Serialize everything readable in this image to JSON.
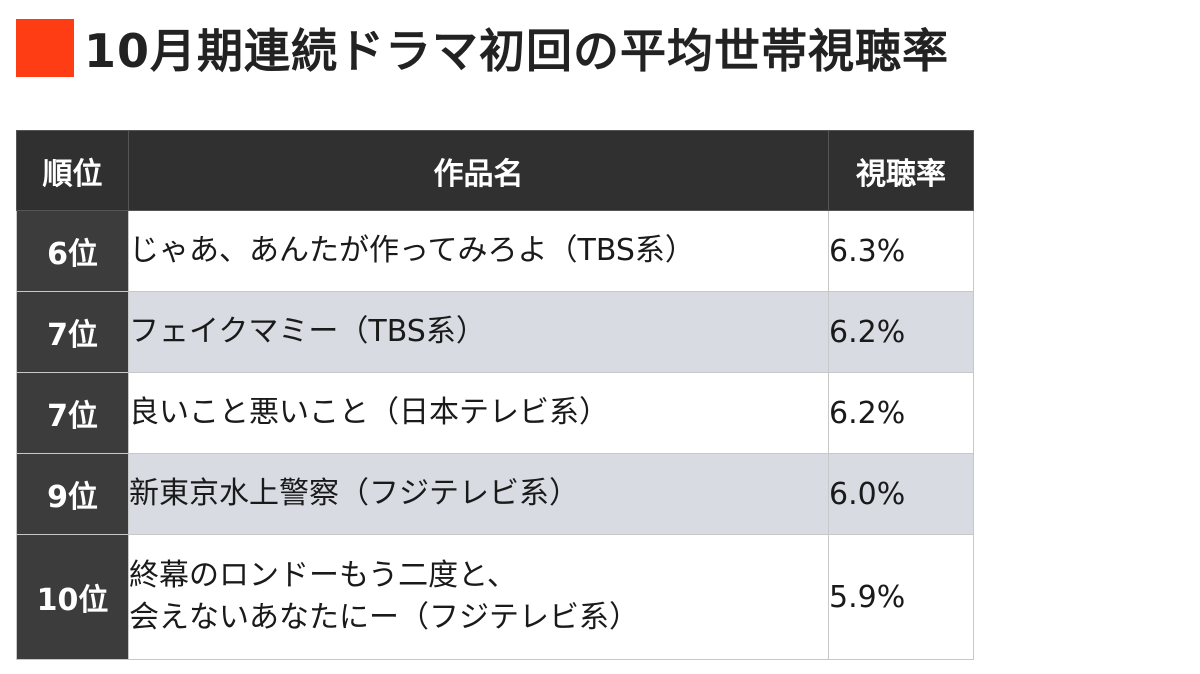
{
  "heading": {
    "title": "10月期連続ドラマ初回の平均世帯視聴率"
  },
  "colors": {
    "accent": "#ff3d14",
    "header_bg": "#303030",
    "rank_bg": "#3c3c3c",
    "row_white": "#ffffff",
    "row_gray": "#d8dce2"
  },
  "table": {
    "headers": {
      "rank": "順位",
      "title": "作品名",
      "rating": "視聴率"
    },
    "rows": [
      {
        "rank": "6位",
        "title_lines": [
          "じゃあ、あんたが作ってみろよ（TBS系）"
        ],
        "rating": "6.3%"
      },
      {
        "rank": "7位",
        "title_lines": [
          "フェイクマミー（TBS系）"
        ],
        "rating": "6.2%"
      },
      {
        "rank": "7位",
        "title_lines": [
          "良いこと悪いこと（日本テレビ系）"
        ],
        "rating": "6.2%"
      },
      {
        "rank": "9位",
        "title_lines": [
          "新東京水上警察（フジテレビ系）"
        ],
        "rating": "6.0%"
      },
      {
        "rank": "10位",
        "title_lines": [
          "終幕のロンドーもう二度と、",
          "会えないあなたにー（フジテレビ系）"
        ],
        "rating": "5.9%"
      }
    ]
  }
}
